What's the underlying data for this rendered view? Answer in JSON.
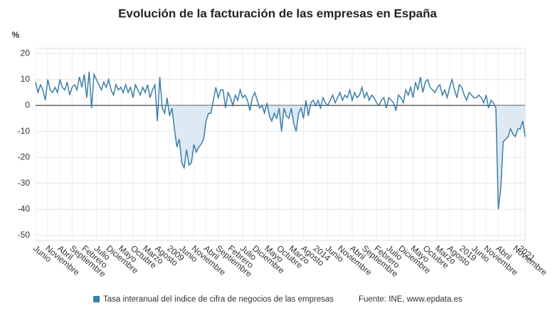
{
  "chart_data": {
    "type": "line",
    "title": "Evolución de la facturación de las empresas en España",
    "y_label": "%",
    "source": "Fuente: INE, www.epdata.es",
    "categories": [
      "Junio",
      null,
      null,
      null,
      null,
      "Noviembre",
      null,
      null,
      null,
      null,
      "Abril",
      null,
      null,
      null,
      null,
      "Septiembre",
      null,
      null,
      null,
      null,
      "Febrero",
      null,
      null,
      null,
      null,
      "Julio",
      null,
      null,
      null,
      null,
      "Diciembre",
      null,
      null,
      null,
      null,
      "Mayo",
      null,
      null,
      null,
      null,
      "Octubre",
      null,
      null,
      null,
      null,
      "Marzo",
      null,
      null,
      null,
      null,
      "Agosto",
      null,
      null,
      null,
      null,
      "2009",
      null,
      null,
      null,
      null,
      "Junio",
      null,
      null,
      null,
      null,
      "Noviembre",
      null,
      null,
      null,
      null,
      "Abril",
      null,
      null,
      null,
      null,
      "Septiembre",
      null,
      null,
      null,
      null,
      "Febrero",
      null,
      null,
      null,
      null,
      "Julio",
      null,
      null,
      null,
      null,
      "Diciembre",
      null,
      null,
      null,
      null,
      "Mayo",
      null,
      null,
      null,
      null,
      "Octubre",
      null,
      null,
      null,
      null,
      "Marzo",
      null,
      null,
      null,
      null,
      "Agosto",
      null,
      null,
      null,
      null,
      "2014",
      null,
      null,
      null,
      null,
      "Junio",
      null,
      null,
      null,
      null,
      "Noviembre",
      null,
      null,
      null,
      null,
      "Abril",
      null,
      null,
      null,
      null,
      "Septiembre",
      null,
      null,
      null,
      null,
      "Febrero",
      null,
      null,
      null,
      null,
      "Julio",
      null,
      null,
      null,
      null,
      "Diciembre",
      null,
      null,
      null,
      null,
      "Mayo",
      null,
      null,
      null,
      null,
      "Octubre",
      null,
      null,
      null,
      null,
      "Marzo",
      null,
      null,
      null,
      null,
      "Agosto",
      null,
      null,
      null,
      null,
      "2019",
      null,
      null,
      null,
      null,
      "Junio",
      null,
      null,
      null,
      null,
      "Noviembre",
      null,
      null,
      null,
      null,
      "Abril",
      null,
      null,
      null,
      null,
      null,
      null,
      "Noviembre",
      null,
      "2021",
      null,
      null
    ],
    "series": [
      {
        "name": "Tasa interanual del índice de cifra de negocios de las empresas",
        "color": "#3d7eaa",
        "values": [
          9,
          5,
          8,
          6,
          2,
          10,
          6,
          5,
          7,
          5,
          10,
          7,
          6,
          9,
          4,
          7,
          8,
          6,
          11,
          7,
          12,
          3,
          13,
          -1,
          12,
          10,
          8,
          6,
          9,
          7,
          10,
          6,
          4,
          8,
          6,
          7,
          5,
          8,
          5,
          7,
          3,
          8,
          6,
          4,
          7,
          5,
          8,
          3,
          6,
          8,
          -6,
          11,
          -1,
          -3,
          3,
          -4,
          -1,
          -9,
          -16,
          -13,
          -22,
          -24,
          -17,
          -23,
          -22,
          -15,
          -18,
          -16,
          -15,
          -13,
          -6,
          -3,
          -3,
          2,
          7,
          3,
          6,
          6,
          -1,
          5,
          3,
          0,
          4,
          2,
          6,
          3,
          4,
          2,
          -2,
          3,
          5,
          2,
          -1,
          0,
          -3,
          1,
          -4,
          -6,
          -3,
          -5,
          -1,
          -10,
          -1,
          -4,
          -5,
          -1,
          -7,
          -10,
          -3,
          -1,
          -5,
          2,
          -4,
          1,
          2,
          0,
          2,
          -1,
          3,
          1,
          0,
          2,
          4,
          1,
          3,
          5,
          2,
          4,
          3,
          6,
          2,
          5,
          3,
          4,
          7,
          3,
          5,
          2,
          4,
          3,
          1,
          0,
          2,
          3,
          -1,
          3,
          2,
          1,
          -2,
          4,
          3,
          1,
          6,
          4,
          7,
          3,
          9,
          6,
          11,
          5,
          9,
          10,
          7,
          6,
          5,
          7,
          8,
          4,
          6,
          3,
          7,
          10,
          6,
          3,
          8,
          7,
          4,
          2,
          5,
          4,
          3,
          3,
          4,
          3,
          1,
          4,
          -1,
          2,
          1,
          -1,
          -40,
          -32,
          -14,
          -13,
          -12,
          -9,
          -11,
          -12,
          -9,
          -9,
          -6,
          -12
        ]
      }
    ],
    "area_color": "#dde9f3",
    "ylim": [
      -52,
      22
    ],
    "yticks": [
      -50,
      -40,
      -30,
      -20,
      -10,
      0,
      10,
      20
    ],
    "grid": true
  }
}
